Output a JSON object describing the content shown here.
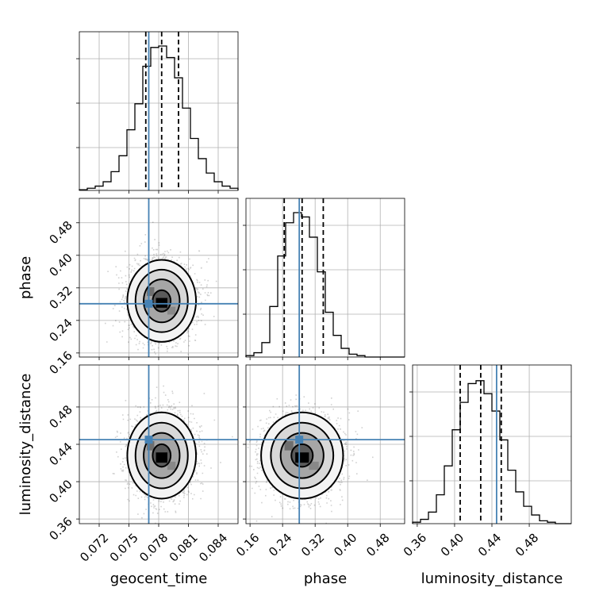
{
  "chart_data": {
    "type": "corner",
    "parameters": [
      "geocent_time",
      "phase",
      "luminosity_distance"
    ],
    "truth_color": "#4682b4",
    "truths": {
      "geocent_time": 0.077,
      "phase": 0.281,
      "luminosity_distance": 0.445
    },
    "quantiles": {
      "geocent_time": [
        0.0767,
        0.0783,
        0.08
      ],
      "phase": [
        0.244,
        0.288,
        0.34
      ],
      "luminosity_distance": [
        0.406,
        0.428,
        0.45
      ]
    },
    "ranges": {
      "geocent_time": [
        0.07,
        0.086
      ],
      "phase": [
        0.15,
        0.54
      ],
      "luminosity_distance": [
        0.355,
        0.525
      ]
    },
    "ticks": {
      "geocent_time": [
        "0.072",
        "0.075",
        "0.078",
        "0.081",
        "0.084"
      ],
      "phase": [
        "0.16",
        "0.24",
        "0.32",
        "0.40",
        "0.48"
      ],
      "luminosity_distance": [
        "0.36",
        "0.40",
        "0.44",
        "0.48"
      ]
    },
    "histograms": {
      "geocent_time": {
        "start": 0.07,
        "step": 0.0008,
        "values": [
          0.005,
          0.015,
          0.03,
          0.06,
          0.13,
          0.24,
          0.42,
          0.6,
          0.86,
          0.99,
          1.0,
          0.92,
          0.78,
          0.57,
          0.36,
          0.22,
          0.12,
          0.06,
          0.03,
          0.015
        ]
      },
      "phase": {
        "start": 0.15,
        "step": 0.0195,
        "values": [
          0.01,
          0.03,
          0.1,
          0.35,
          0.7,
          0.93,
          1.0,
          0.97,
          0.83,
          0.59,
          0.31,
          0.15,
          0.06,
          0.02,
          0.01,
          0,
          0,
          0,
          0,
          0
        ]
      },
      "luminosity_distance": {
        "start": 0.355,
        "step": 0.0085,
        "values": [
          0.01,
          0.03,
          0.08,
          0.2,
          0.4,
          0.65,
          0.84,
          0.97,
          0.99,
          0.9,
          0.78,
          0.58,
          0.37,
          0.22,
          0.12,
          0.06,
          0.02,
          0.01,
          0,
          0
        ]
      }
    },
    "marginal_yticks": [
      0.27,
      0.55,
      0.83
    ],
    "contour_levels": [
      "0.5",
      "1.0",
      "1.5",
      "2.0"
    ],
    "grid": true,
    "legend": "none"
  }
}
